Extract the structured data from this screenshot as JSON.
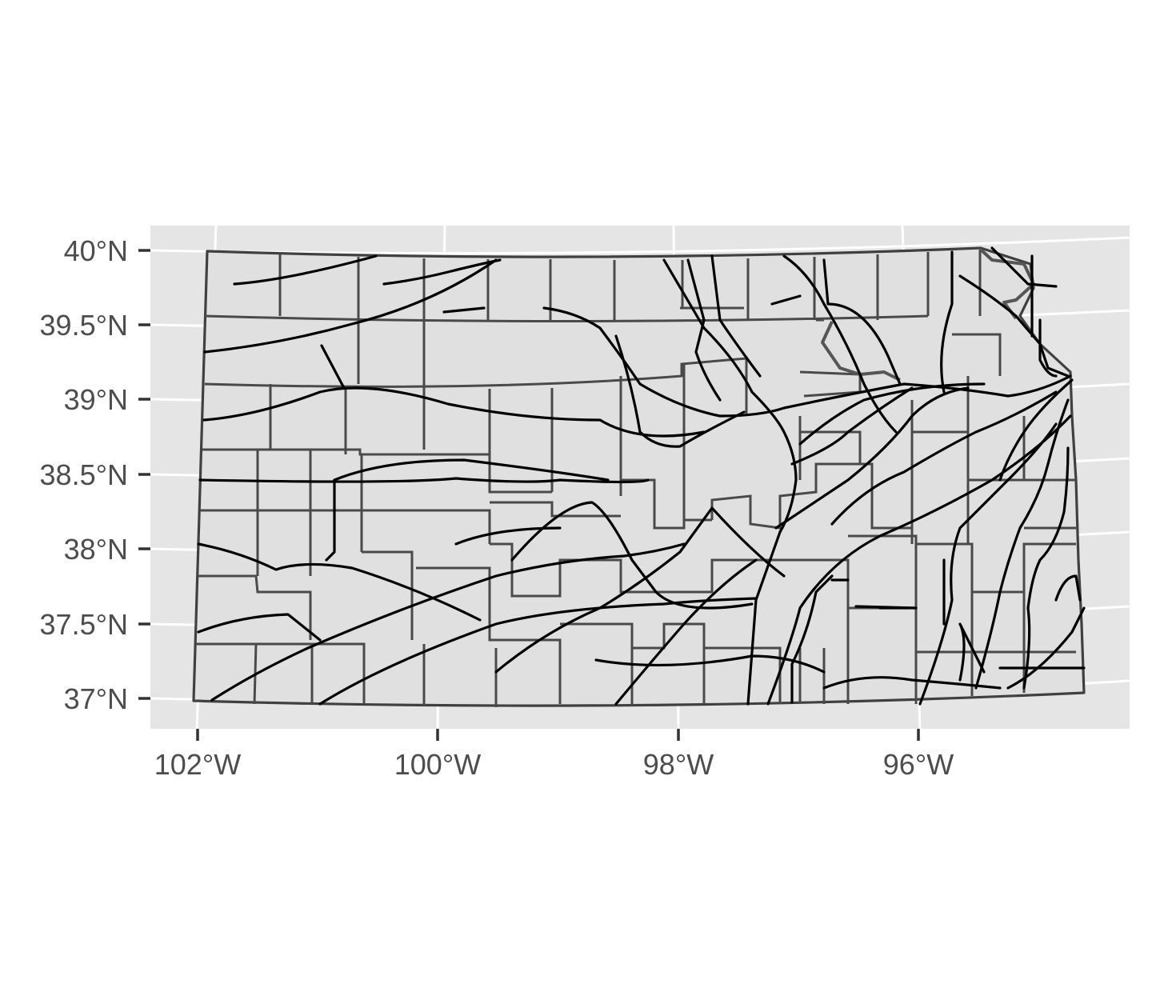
{
  "chart_data": {
    "type": "map",
    "region": "Kansas",
    "layers": [
      "county boundaries",
      "railroad lines"
    ],
    "xlim": [
      -102.2,
      -94.2
    ],
    "ylim": [
      36.8,
      40.2
    ],
    "x_ticks": [
      {
        "value": -102,
        "label": "102°W"
      },
      {
        "value": -100,
        "label": "100°W"
      },
      {
        "value": -98,
        "label": "98°W"
      },
      {
        "value": -96,
        "label": "96°W"
      }
    ],
    "y_ticks": [
      {
        "value": 40,
        "label": "40°N"
      },
      {
        "value": 39.5,
        "label": "39.5°N"
      },
      {
        "value": 39,
        "label": "39°N"
      },
      {
        "value": 38.5,
        "label": "38.5°N"
      },
      {
        "value": 38,
        "label": "38°N"
      },
      {
        "value": 37.5,
        "label": "37.5°N"
      },
      {
        "value": 37,
        "label": "37°N"
      }
    ],
    "grid": true,
    "legend": "none",
    "colors": {
      "panel": "#e5e5e5",
      "land": "#e0e0e0",
      "border": "#404040",
      "rail": "#000000",
      "grid": "#ffffff"
    }
  }
}
